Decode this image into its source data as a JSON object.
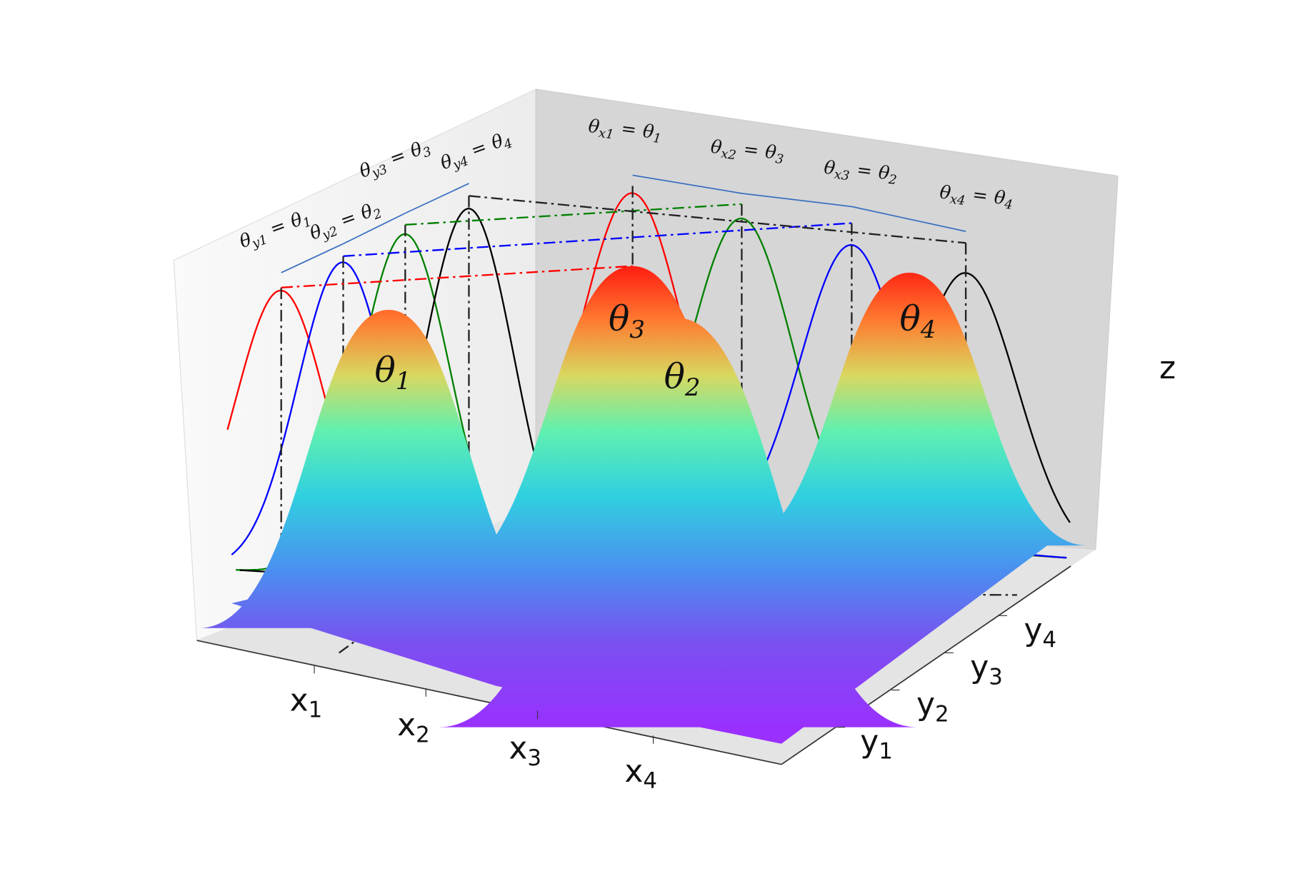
{
  "axes": {
    "x_labels": [
      {
        "base": "x",
        "sub": "1"
      },
      {
        "base": "x",
        "sub": "2"
      },
      {
        "base": "x",
        "sub": "3"
      },
      {
        "base": "x",
        "sub": "4"
      }
    ],
    "y_labels": [
      {
        "base": "y",
        "sub": "1"
      },
      {
        "base": "y",
        "sub": "2"
      },
      {
        "base": "y",
        "sub": "3"
      },
      {
        "base": "y",
        "sub": "4"
      }
    ],
    "z_label": "z"
  },
  "peaks": [
    {
      "base": "θ",
      "sub": "1"
    },
    {
      "base": "θ",
      "sub": "2"
    },
    {
      "base": "θ",
      "sub": "3"
    },
    {
      "base": "θ",
      "sub": "4"
    }
  ],
  "x_annotations": [
    {
      "lhs": {
        "base": "θ",
        "sub": "x1"
      },
      "eq": "=",
      "rhs": {
        "base": "θ",
        "sub": "1"
      }
    },
    {
      "lhs": {
        "base": "θ",
        "sub": "x2"
      },
      "eq": "=",
      "rhs": {
        "base": "θ",
        "sub": "3"
      }
    },
    {
      "lhs": {
        "base": "θ",
        "sub": "x3"
      },
      "eq": "=",
      "rhs": {
        "base": "θ",
        "sub": "2"
      }
    },
    {
      "lhs": {
        "base": "θ",
        "sub": "x4"
      },
      "eq": "=",
      "rhs": {
        "base": "θ",
        "sub": "4"
      }
    }
  ],
  "y_annotations": [
    {
      "lhs": {
        "base": "θ",
        "sub": "y1"
      },
      "eq": "=",
      "rhs": {
        "base": "θ",
        "sub": "1"
      }
    },
    {
      "lhs": {
        "base": "θ",
        "sub": "y2"
      },
      "eq": "=",
      "rhs": {
        "base": "θ",
        "sub": "2"
      }
    },
    {
      "lhs": {
        "base": "θ",
        "sub": "y3"
      },
      "eq": "=",
      "rhs": {
        "base": "θ",
        "sub": "3"
      }
    },
    {
      "lhs": {
        "base": "θ",
        "sub": "y4"
      },
      "eq": "=",
      "rhs": {
        "base": "θ",
        "sub": "4"
      }
    }
  ]
}
